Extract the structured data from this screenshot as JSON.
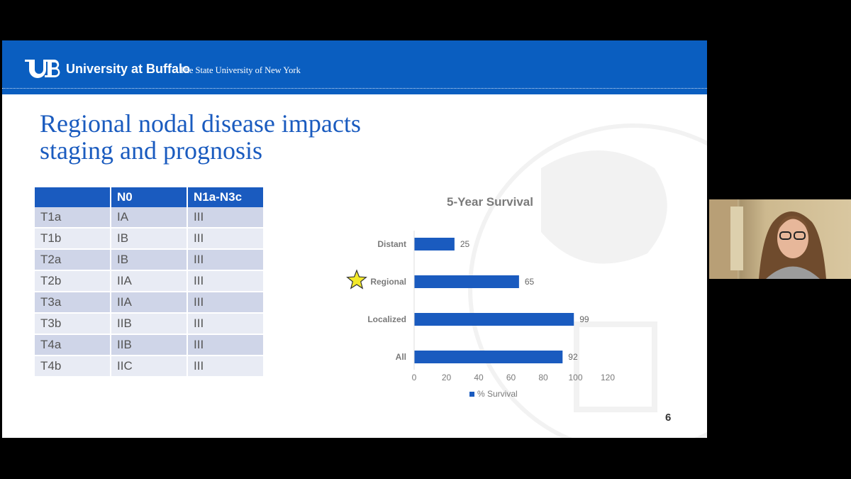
{
  "header": {
    "logo_text": "University at Buffalo",
    "logo_subtitle": "The State University of New York"
  },
  "slide": {
    "title_line1": "Regional nodal disease impacts",
    "title_line2": "staging and prognosis",
    "page_number": "6"
  },
  "staging_table": {
    "headers": [
      "",
      "N0",
      "N1a-N3c"
    ],
    "rows": [
      [
        "T1a",
        "IA",
        "III"
      ],
      [
        "T1b",
        "IB",
        "III"
      ],
      [
        "T2a",
        "IB",
        "III"
      ],
      [
        "T2b",
        "IIA",
        "III"
      ],
      [
        "T3a",
        "IIA",
        "III"
      ],
      [
        "T3b",
        "IIB",
        "III"
      ],
      [
        "T4a",
        "IIB",
        "III"
      ],
      [
        "T4b",
        "IIC",
        "III"
      ]
    ]
  },
  "chart_data": {
    "type": "bar",
    "orientation": "horizontal",
    "title": "5-Year Survival",
    "categories": [
      "Distant",
      "Regional",
      "Localized",
      "All"
    ],
    "series": [
      {
        "name": "% Survival",
        "values": [
          25,
          65,
          99,
          92
        ]
      }
    ],
    "xlim": [
      0,
      120
    ],
    "x_ticks": [
      "0",
      "20",
      "40",
      "60",
      "80",
      "100",
      "120"
    ],
    "legend_position": "bottom",
    "highlighted_category": "Regional",
    "colors": {
      "bar": "#1a5bbf",
      "star": "#f2e82a"
    }
  },
  "colors": {
    "banner": "#0a5ec0",
    "title": "#1a5bbf",
    "table_header": "#1a5bbf",
    "table_row_odd": "#cfd5e8",
    "table_row_even": "#e8ebf4"
  },
  "webcam": {
    "description_icon": "person-video-icon"
  }
}
